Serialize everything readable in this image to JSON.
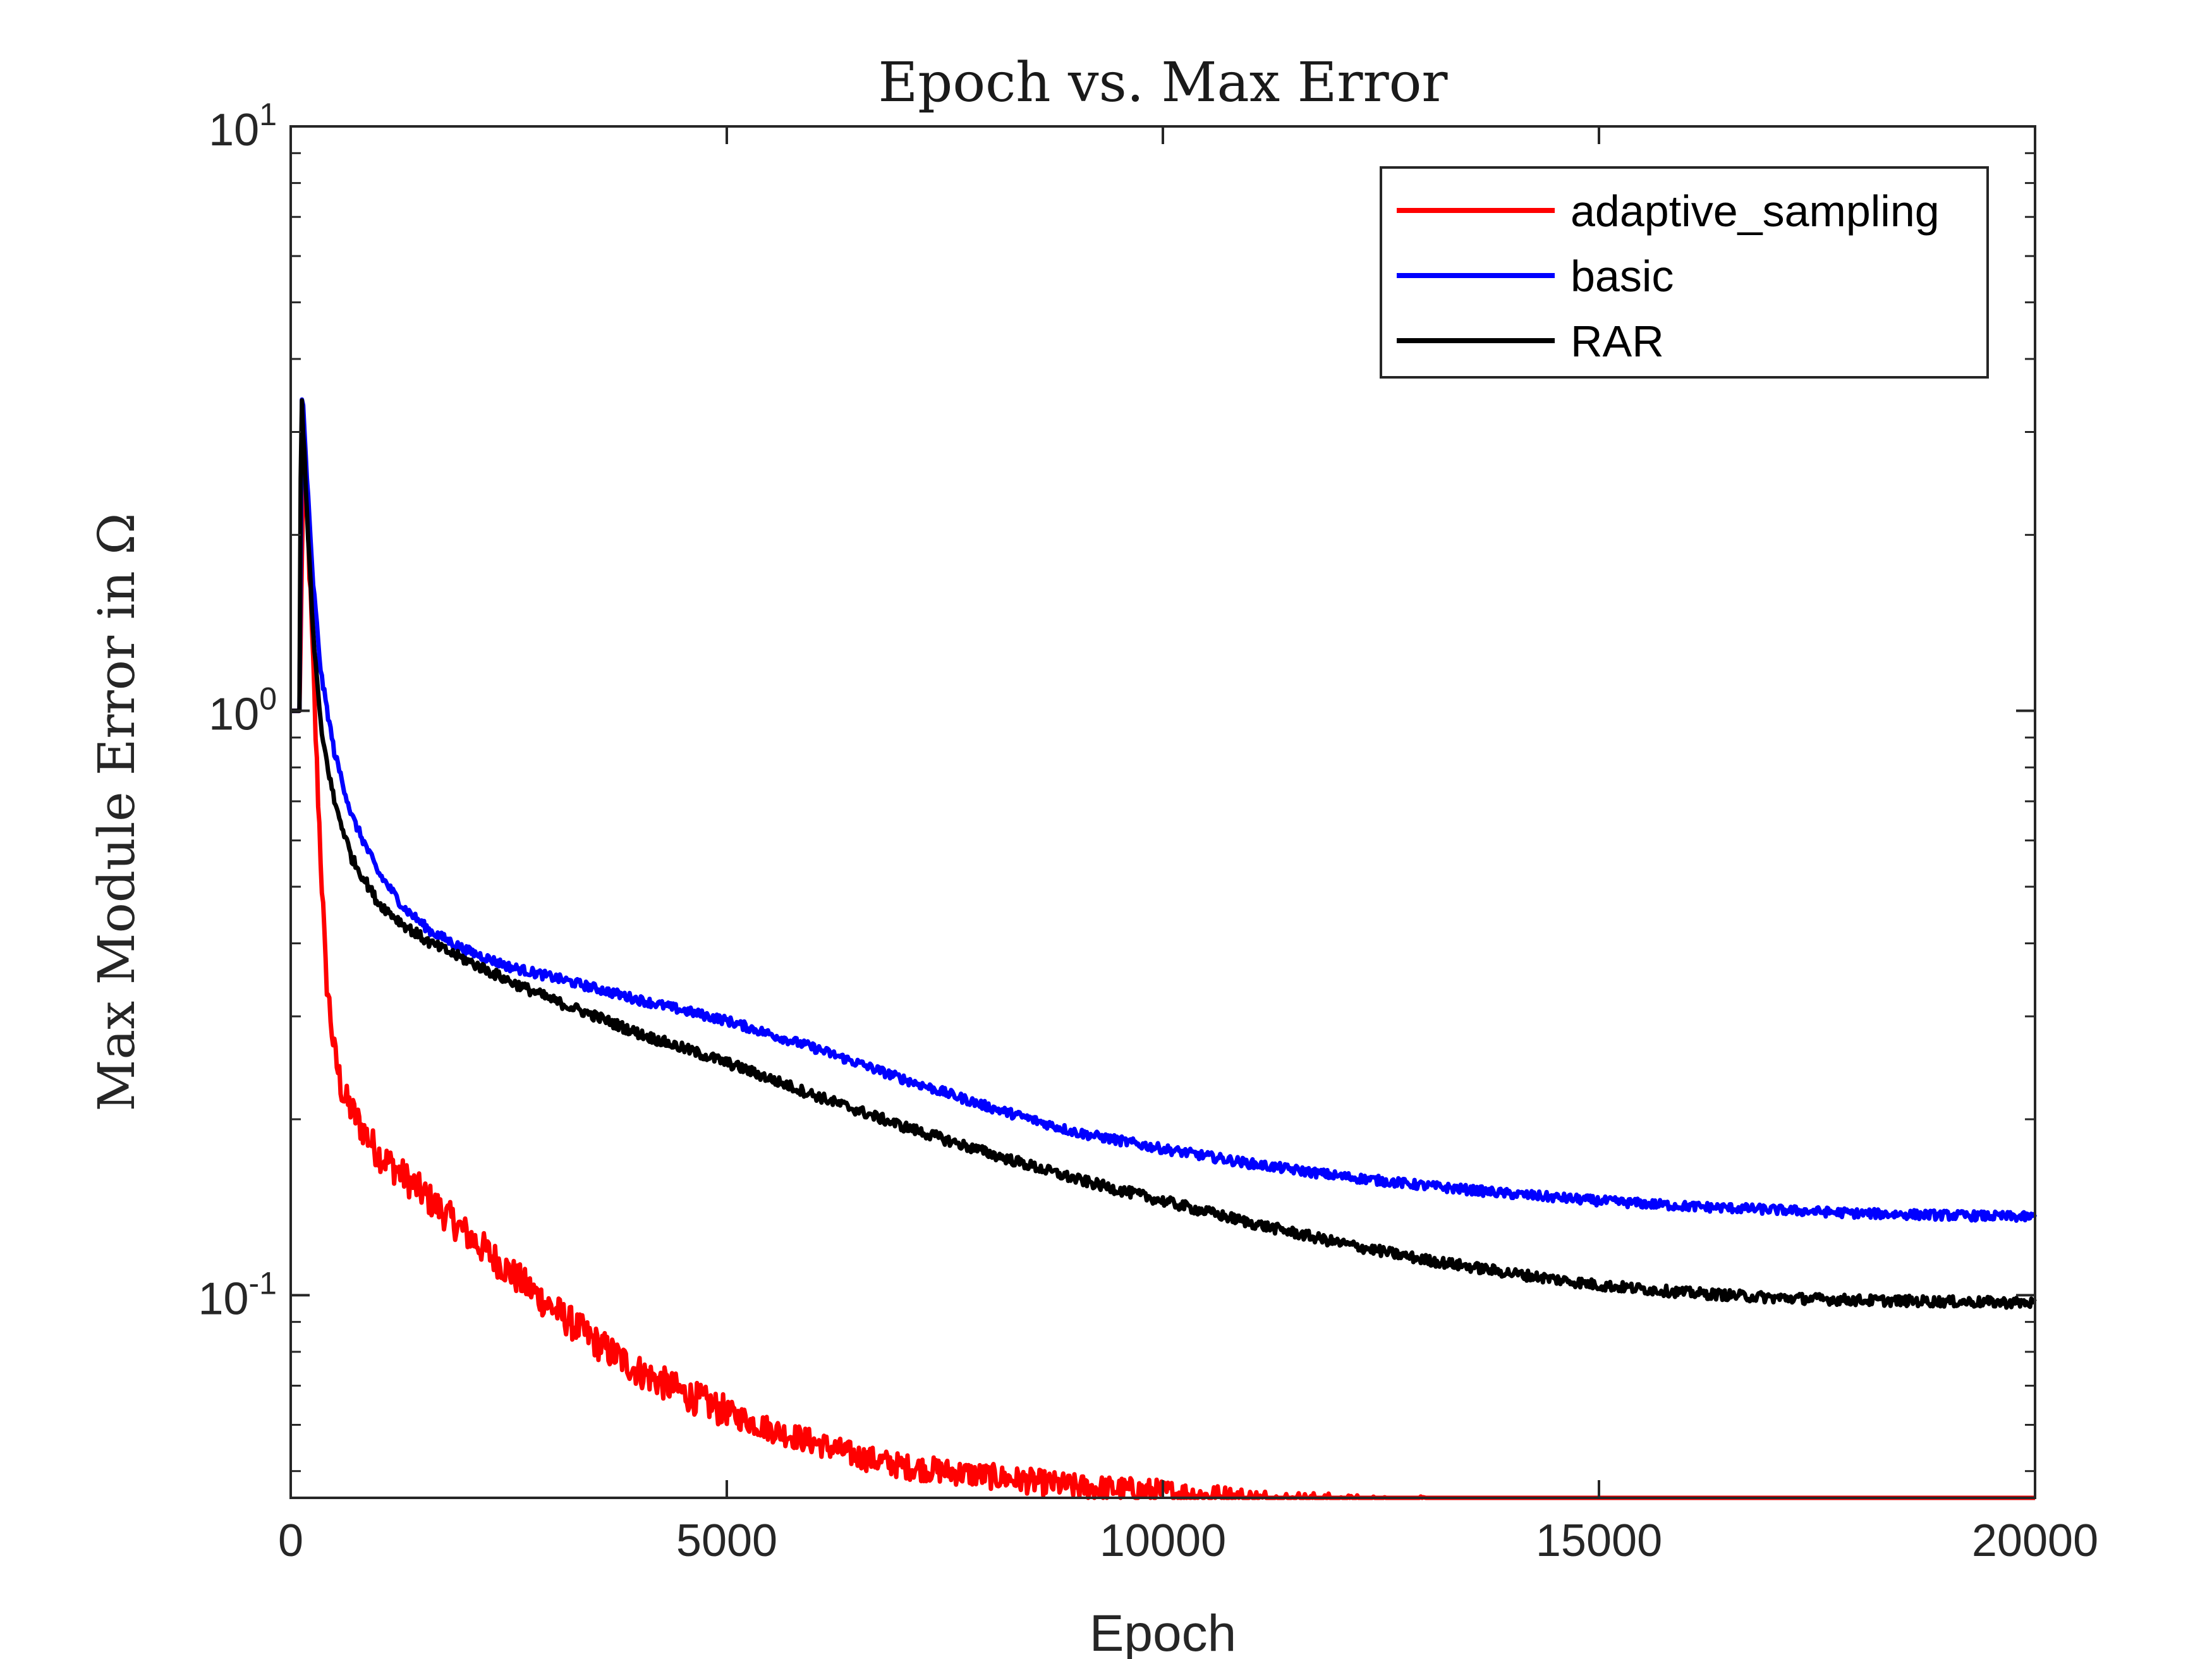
{
  "chart_data": {
    "type": "line",
    "title": "Epoch vs. Max Error",
    "xlabel": "Epoch",
    "ylabel": "Max Module Error in Ω",
    "xlim": [
      0,
      20000
    ],
    "ylim": [
      0.045,
      10
    ],
    "yscale": "log",
    "x_ticks": [
      {
        "value": 0,
        "label": "0"
      },
      {
        "value": 5000,
        "label": "5000"
      },
      {
        "value": 10000,
        "label": "10000"
      },
      {
        "value": 15000,
        "label": "15000"
      },
      {
        "value": 20000,
        "label": "20000"
      }
    ],
    "y_ticks": [
      {
        "value": 10,
        "base": "10",
        "exp": "1"
      },
      {
        "value": 1,
        "base": "10",
        "exp": "0"
      },
      {
        "value": 0.1,
        "base": "10",
        "exp": "-1"
      }
    ],
    "legend_position": "top-right",
    "grid": false,
    "series": [
      {
        "name": "adaptive_sampling",
        "color": "#ff0000",
        "x": [
          0,
          100,
          150,
          200,
          300,
          400,
          500,
          600,
          800,
          1000,
          1500,
          2000,
          2500,
          3000,
          3500,
          4000,
          4500,
          5000,
          5500,
          6000,
          6500,
          7000,
          8000,
          9000,
          10000,
          11000,
          12000,
          13000,
          14000,
          15000,
          16000,
          17000,
          18000,
          19000,
          20000
        ],
        "y": [
          1.0,
          1.0,
          2.8,
          2.0,
          0.8,
          0.36,
          0.26,
          0.22,
          0.195,
          0.175,
          0.15,
          0.128,
          0.11,
          0.095,
          0.083,
          0.074,
          0.068,
          0.063,
          0.059,
          0.056,
          0.053,
          0.051,
          0.049,
          0.047,
          0.046,
          0.0445,
          0.0435,
          0.043,
          0.0425,
          0.042,
          0.0415,
          0.041,
          0.0405,
          0.04,
          0.04
        ]
      },
      {
        "name": "basic",
        "color": "#0000ff",
        "x": [
          0,
          100,
          130,
          180,
          250,
          350,
          500,
          700,
          1000,
          1300,
          1600,
          2000,
          2500,
          3000,
          3500,
          4000,
          5000,
          6000,
          7000,
          8000,
          9000,
          10000,
          11000,
          12000,
          13000,
          14000,
          15000,
          16000,
          17000,
          18000,
          19000,
          20000
        ],
        "y": [
          1.0,
          1.0,
          3.6,
          2.6,
          1.7,
          1.15,
          0.85,
          0.66,
          0.53,
          0.46,
          0.42,
          0.39,
          0.365,
          0.35,
          0.335,
          0.32,
          0.295,
          0.265,
          0.235,
          0.21,
          0.19,
          0.178,
          0.168,
          0.16,
          0.154,
          0.149,
          0.145,
          0.142,
          0.14,
          0.138,
          0.137,
          0.136
        ]
      },
      {
        "name": "RAR",
        "color": "#000000",
        "x": [
          0,
          100,
          120,
          180,
          250,
          350,
          500,
          700,
          1000,
          1300,
          1600,
          2000,
          2500,
          3000,
          3500,
          4000,
          5000,
          6000,
          7000,
          8000,
          9000,
          10000,
          11000,
          12000,
          13000,
          14000,
          15000,
          16000,
          17000,
          18000,
          19000,
          20000
        ],
        "y": [
          1.0,
          1.0,
          3.6,
          2.3,
          1.4,
          0.92,
          0.7,
          0.56,
          0.47,
          0.43,
          0.4,
          0.375,
          0.345,
          0.32,
          0.3,
          0.28,
          0.25,
          0.22,
          0.195,
          0.175,
          0.158,
          0.145,
          0.133,
          0.123,
          0.115,
          0.109,
          0.104,
          0.101,
          0.099,
          0.098,
          0.0975,
          0.097
        ]
      }
    ]
  }
}
